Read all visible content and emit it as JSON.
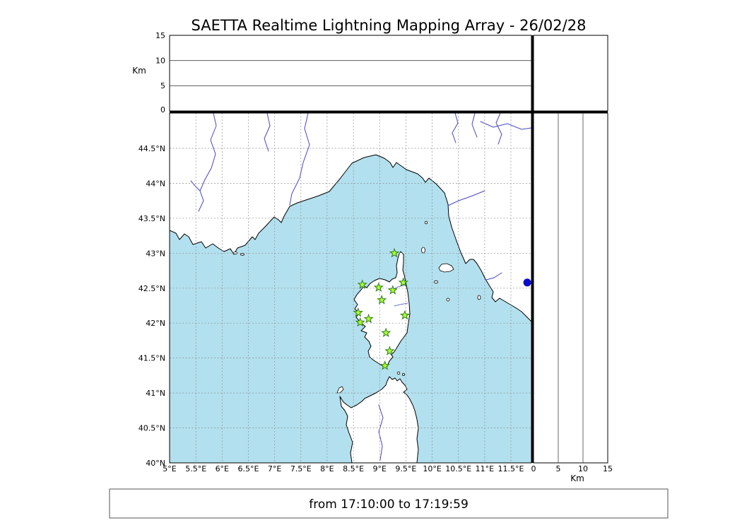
{
  "title": "SAETTA Realtime Lightning Mapping Array - 26/02/28",
  "footer": "from 17:10:00 to 17:19:59",
  "axes": {
    "km_unit": "Km",
    "altitude_range_km": [
      0,
      15
    ],
    "top_panel_ticks": [
      "15",
      "10",
      "5",
      "0"
    ],
    "right_panel_ticks": [
      "0",
      "5",
      "10",
      "15"
    ],
    "lat_ticks": [
      "44.5°N",
      "44°N",
      "43.5°N",
      "43°N",
      "42.5°N",
      "42°N",
      "41.5°N",
      "41°N",
      "40.5°N",
      "40°N"
    ],
    "lon_ticks": [
      "5°E",
      "5.5°E",
      "6°E",
      "6.5°E",
      "7°E",
      "7.5°E",
      "8°E",
      "8.5°E",
      "9°E",
      "9.5°E",
      "10°E",
      "10.5°E",
      "11°E",
      "11.5°E"
    ]
  },
  "map_data": {
    "extent": {
      "lon_min": 5.0,
      "lon_max": 11.9,
      "lat_min": 40.0,
      "lat_max": 45.0
    },
    "stations": [
      {
        "lat": 43.0,
        "lon": 9.28
      },
      {
        "lat": 42.55,
        "lon": 8.67
      },
      {
        "lat": 42.51,
        "lon": 8.98
      },
      {
        "lat": 42.47,
        "lon": 9.25
      },
      {
        "lat": 42.58,
        "lon": 9.45
      },
      {
        "lat": 42.33,
        "lon": 9.04
      },
      {
        "lat": 42.15,
        "lon": 8.59
      },
      {
        "lat": 42.11,
        "lon": 9.48
      },
      {
        "lat": 42.06,
        "lon": 8.79
      },
      {
        "lat": 42.01,
        "lon": 8.63
      },
      {
        "lat": 41.86,
        "lon": 9.12
      },
      {
        "lat": 41.6,
        "lon": 9.19
      },
      {
        "lat": 41.39,
        "lon": 9.1
      }
    ],
    "event_point": {
      "lat": 42.58,
      "lon": 11.81
    }
  },
  "colors": {
    "sea": "#b2e0ee",
    "land": "#ffffff",
    "coast": "#000000",
    "river": "#4646c8",
    "grid": "#8f8f8f",
    "station_fill": "#adff2f",
    "station_stroke": "#2e7d1e",
    "event_dot": "#0b0bcf"
  }
}
